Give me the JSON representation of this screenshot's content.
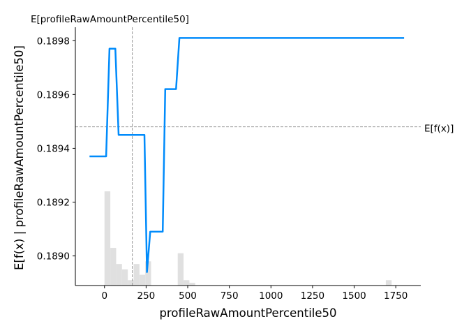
{
  "chart_data": {
    "type": "line",
    "title": "",
    "top_label": "E[profileRawAmountPercentile50]",
    "xlabel": "profileRawAmountPercentile50",
    "ylabel": "E[f(x) | profileRawAmountPercentile50]",
    "xlim": [
      -175,
      1900
    ],
    "ylim": [
      0.18889,
      0.18985
    ],
    "x_ticks": [
      0,
      250,
      500,
      750,
      1000,
      1250,
      1500,
      1750
    ],
    "x_tick_labels": [
      "0",
      "250",
      "500",
      "750",
      "1000",
      "1250",
      "1500",
      "1750"
    ],
    "y_ticks": [
      0.189,
      0.1892,
      0.1894,
      0.1896,
      0.1898
    ],
    "y_tick_labels": [
      "0.1890",
      "0.1892",
      "0.1894",
      "0.1896",
      "0.1898"
    ],
    "grid": false,
    "colors": {
      "line": "#008bfb",
      "hist": "#e0e0e0",
      "ref": "#999999"
    },
    "series": [
      {
        "x": [
          -90,
          10,
          30,
          65,
          85,
          240,
          255,
          275,
          350,
          365,
          430,
          450,
          1800
        ],
        "y": [
          0.18937,
          0.18937,
          0.18977,
          0.18977,
          0.18945,
          0.18945,
          0.18894,
          0.18909,
          0.18909,
          0.18962,
          0.18962,
          0.18981,
          0.18981
        ]
      }
    ],
    "expected_x": {
      "x": 167
    },
    "expected_fx": {
      "y": 0.18948,
      "label": "E[f(x)]"
    },
    "histogram": {
      "bins": [
        {
          "x0": 0,
          "x1": 35,
          "y": 0.18924
        },
        {
          "x0": 35,
          "x1": 70,
          "y": 0.18903
        },
        {
          "x0": 70,
          "x1": 105,
          "y": 0.18897
        },
        {
          "x0": 105,
          "x1": 140,
          "y": 0.18895
        },
        {
          "x0": 140,
          "x1": 175,
          "y": 0.18891
        },
        {
          "x0": 175,
          "x1": 210,
          "y": 0.18897
        },
        {
          "x0": 210,
          "x1": 245,
          "y": 0.18893
        },
        {
          "x0": 245,
          "x1": 280,
          "y": 0.18898
        },
        {
          "x0": 440,
          "x1": 475,
          "y": 0.18901
        },
        {
          "x0": 475,
          "x1": 510,
          "y": 0.18891
        },
        {
          "x0": 510,
          "x1": 545,
          "y": 0.1889
        },
        {
          "x0": 1690,
          "x1": 1725,
          "y": 0.18891
        }
      ]
    }
  }
}
